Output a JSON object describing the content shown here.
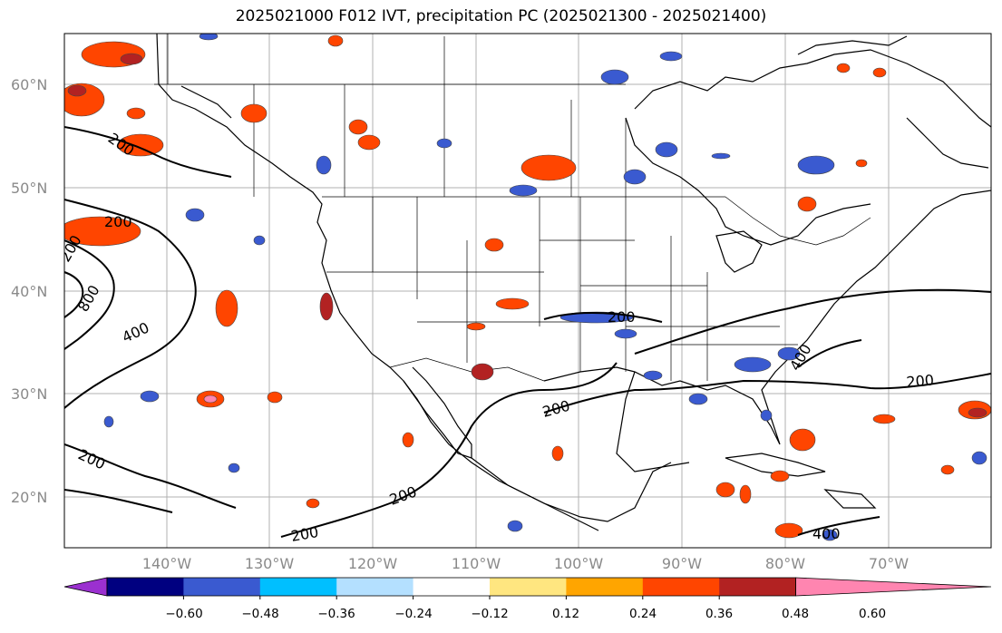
{
  "title": "2025021000 F012 IVT, precipitation PC (2025021300 - 2025021400)",
  "lat_labels": [
    "60°N",
    "50°N",
    "40°N",
    "30°N",
    "20°N"
  ],
  "lon_labels": [
    "140°W",
    "130°W",
    "120°W",
    "110°W",
    "100°W",
    "90°W",
    "80°W",
    "70°W"
  ],
  "ivt_contour_labels": [
    "200",
    "200",
    "200",
    "800",
    "400",
    "200",
    "200",
    "200",
    "200",
    "200",
    "200",
    "400",
    "400"
  ],
  "colorbar": {
    "tick_labels": [
      "−0.60",
      "−0.48",
      "−0.36",
      "−0.24",
      "−0.12",
      "0.12",
      "0.24",
      "0.36",
      "0.48",
      "0.60"
    ],
    "colors": [
      "#9b30d0",
      "#000080",
      "#3a5ad0",
      "#00bfff",
      "#b4e0ff",
      "#ffffff",
      "#ffe680",
      "#ffa500",
      "#ff4500",
      "#b22222",
      "#ff85b0"
    ]
  }
}
